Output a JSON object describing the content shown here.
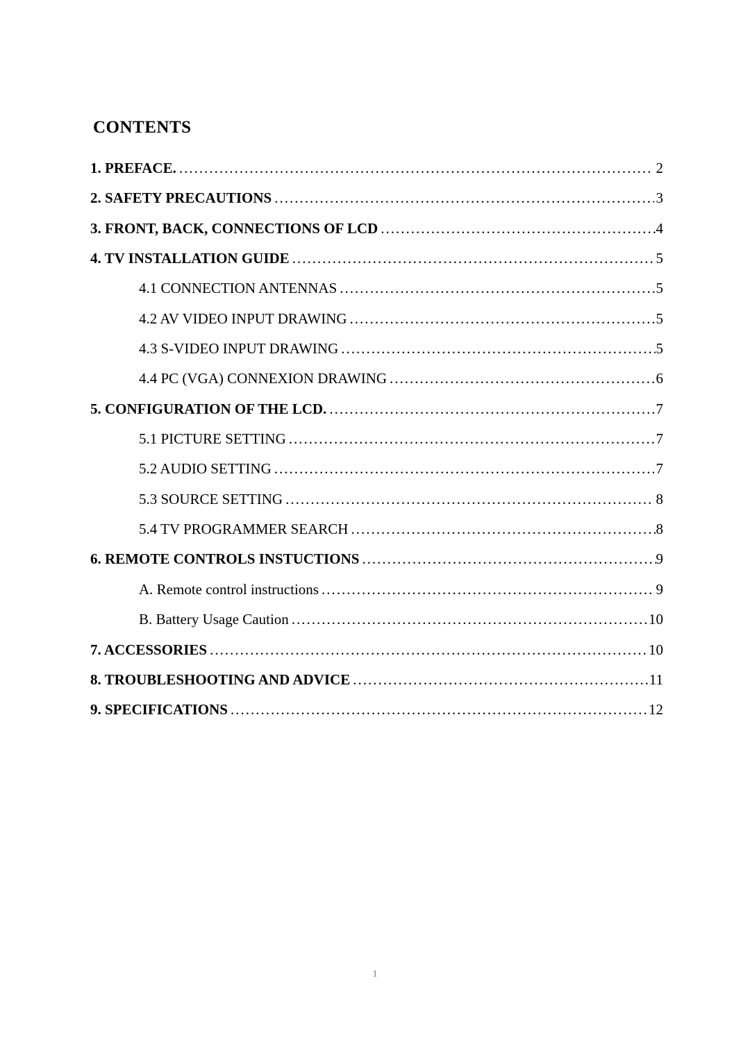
{
  "heading": "CONTENTS",
  "pageNumber": "1",
  "dotChar": ".",
  "style": {
    "backgroundColor": "#ffffff",
    "textColor": "#000000",
    "pageNumColor": "#777777",
    "fontFamily": "Times New Roman",
    "headingFontSize": 25,
    "bodyFontSize": 21,
    "subIndentPx": 70
  },
  "entries": [
    {
      "title": "1. PREFACE.",
      "page": "2",
      "bold": true,
      "level": 0
    },
    {
      "title": "2. SAFETY PRECAUTIONS",
      "page": "3",
      "bold": true,
      "level": 0
    },
    {
      "title": "3. FRONT, BACK, CONNECTIONS OF LCD",
      "page": "4",
      "bold": true,
      "level": 0
    },
    {
      "title": "4. TV INSTALLATION GUIDE",
      "page": "5",
      "bold": true,
      "level": 0
    },
    {
      "title": "4.1 CONNECTION ANTENNAS",
      "page": "5",
      "bold": false,
      "level": 1
    },
    {
      "title": "4.2 AV VIDEO INPUT DRAWING",
      "page": "5",
      "bold": false,
      "level": 1
    },
    {
      "title": "4.3 S-VIDEO INPUT DRAWING",
      "page": "5",
      "bold": false,
      "level": 1
    },
    {
      "title": "4.4 PC (VGA) CONNEXION DRAWING",
      "page": "6",
      "bold": false,
      "level": 1
    },
    {
      "title": "5. CONFIGURATION OF THE LCD.",
      "page": "7",
      "bold": true,
      "level": 0
    },
    {
      "title": "5.1 PICTURE SETTING",
      "page": "7",
      "bold": false,
      "level": 1
    },
    {
      "title": "5.2 AUDIO SETTING",
      "page": "7",
      "bold": false,
      "level": 1
    },
    {
      "title": "5.3 SOURCE SETTING",
      "page": "8",
      "bold": false,
      "level": 1
    },
    {
      "title": "5.4 TV PROGRAMMER SEARCH",
      "page": "8",
      "bold": false,
      "level": 1
    },
    {
      "title": "6. REMOTE CONTROLS INSTUCTIONS",
      "page": "9",
      "bold": true,
      "level": 0
    },
    {
      "title": "A.  Remote control instructions",
      "page": "9",
      "bold": false,
      "level": 1
    },
    {
      "title": "B.  Battery Usage Caution",
      "page": "10",
      "bold": false,
      "level": 1
    },
    {
      "title": "7. ACCESSORIES",
      "page": "10",
      "bold": true,
      "level": 0
    },
    {
      "title": "8. TROUBLESHOOTING AND ADVICE",
      "page": "11",
      "bold": true,
      "level": 0
    },
    {
      "title": "9. SPECIFICATIONS",
      "page": "12",
      "bold": true,
      "level": 0
    }
  ]
}
